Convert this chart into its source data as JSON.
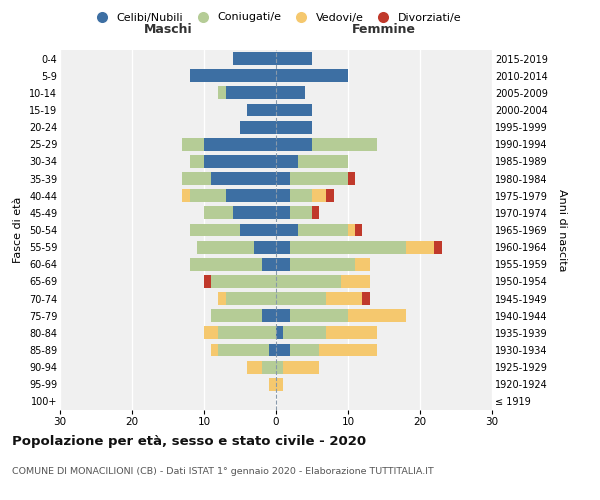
{
  "age_groups": [
    "100+",
    "95-99",
    "90-94",
    "85-89",
    "80-84",
    "75-79",
    "70-74",
    "65-69",
    "60-64",
    "55-59",
    "50-54",
    "45-49",
    "40-44",
    "35-39",
    "30-34",
    "25-29",
    "20-24",
    "15-19",
    "10-14",
    "5-9",
    "0-4"
  ],
  "birth_years": [
    "≤ 1919",
    "1920-1924",
    "1925-1929",
    "1930-1934",
    "1935-1939",
    "1940-1944",
    "1945-1949",
    "1950-1954",
    "1955-1959",
    "1960-1964",
    "1965-1969",
    "1970-1974",
    "1975-1979",
    "1980-1984",
    "1985-1989",
    "1990-1994",
    "1995-1999",
    "2000-2004",
    "2005-2009",
    "2010-2014",
    "2015-2019"
  ],
  "colors": {
    "celibi": "#3d6fa3",
    "coniugati": "#b5cc96",
    "vedovi": "#f5c86e",
    "divorziati": "#c0392b"
  },
  "males": {
    "celibi": [
      0,
      0,
      0,
      1,
      0,
      2,
      0,
      0,
      2,
      3,
      5,
      6,
      7,
      9,
      10,
      10,
      5,
      4,
      7,
      12,
      6
    ],
    "coniugati": [
      0,
      0,
      2,
      7,
      8,
      7,
      7,
      9,
      10,
      8,
      7,
      4,
      5,
      4,
      2,
      3,
      0,
      0,
      1,
      0,
      0
    ],
    "vedovi": [
      0,
      1,
      2,
      1,
      2,
      0,
      1,
      0,
      0,
      0,
      0,
      0,
      1,
      0,
      0,
      0,
      0,
      0,
      0,
      0,
      0
    ],
    "divorziati": [
      0,
      0,
      0,
      0,
      0,
      0,
      0,
      1,
      0,
      0,
      0,
      0,
      0,
      0,
      0,
      0,
      0,
      0,
      0,
      0,
      0
    ]
  },
  "females": {
    "nubili": [
      0,
      0,
      0,
      2,
      1,
      2,
      0,
      0,
      2,
      2,
      3,
      2,
      2,
      2,
      3,
      5,
      5,
      5,
      4,
      10,
      5
    ],
    "coniugate": [
      0,
      0,
      1,
      4,
      6,
      8,
      7,
      9,
      9,
      16,
      7,
      3,
      3,
      8,
      7,
      9,
      0,
      0,
      0,
      0,
      0
    ],
    "vedove": [
      0,
      1,
      5,
      8,
      7,
      8,
      5,
      4,
      2,
      4,
      1,
      0,
      2,
      0,
      0,
      0,
      0,
      0,
      0,
      0,
      0
    ],
    "divorziate": [
      0,
      0,
      0,
      0,
      0,
      0,
      1,
      0,
      0,
      1,
      1,
      1,
      1,
      1,
      0,
      0,
      0,
      0,
      0,
      0,
      0
    ]
  },
  "title": "Popolazione per età, sesso e stato civile - 2020",
  "subtitle": "COMUNE DI MONACILIONI (CB) - Dati ISTAT 1° gennaio 2020 - Elaborazione TUTTITALIA.IT",
  "xlim": 30,
  "legend_labels": [
    "Celibi/Nubili",
    "Coniugati/e",
    "Vedovi/e",
    "Divorziati/e"
  ],
  "ylabel_left": "Fasce di età",
  "ylabel_right": "Anni di nascita",
  "header_left": "Maschi",
  "header_right": "Femmine",
  "bg_color": "#f0f0f0"
}
